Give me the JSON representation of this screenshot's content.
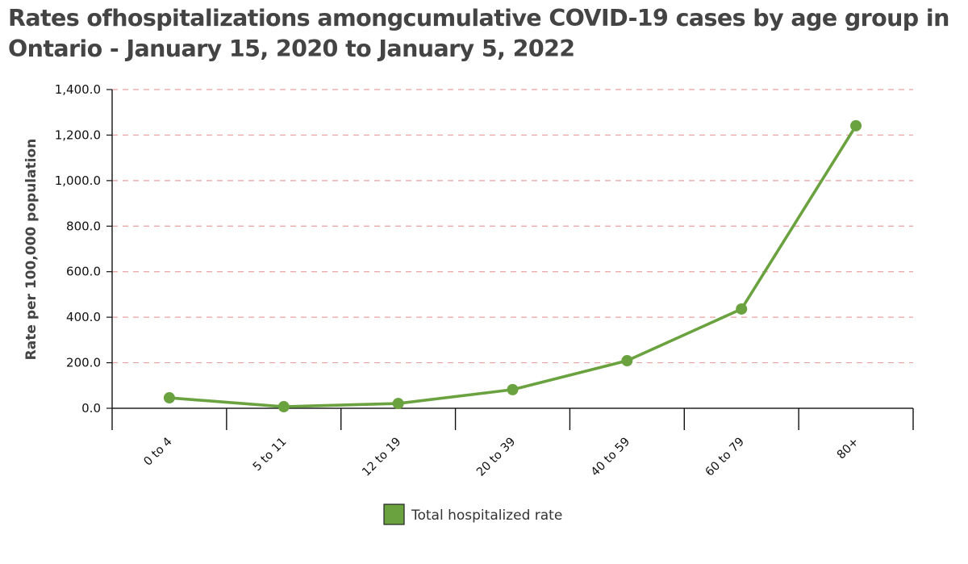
{
  "chart_data": {
    "type": "line",
    "title": "Rates ofhospitalizations amongcumulative COVID-19 cases by age group  in Ontario - January 15, 2020 to January 5, 2022",
    "xlabel": "",
    "ylabel": "Rate per 100,000 population",
    "categories": [
      "0 to 4",
      "5 to 11",
      "12 to 19",
      "20 to 39",
      "40 to 59",
      "60 to 79",
      "80+"
    ],
    "series": [
      {
        "name": "Total hospitalized rate",
        "color": "#6aa23f",
        "values": [
          46,
          7,
          21,
          82,
          209,
          436,
          1241
        ]
      }
    ],
    "ylim": [
      0,
      1400
    ],
    "yticks": [
      0,
      200,
      400,
      600,
      800,
      1000,
      1200,
      1400
    ],
    "ytick_labels": [
      "0.0",
      "200.0",
      "400.0",
      "600.0",
      "800.0",
      "1,000.0",
      "1,200.0",
      "1,400.0"
    ],
    "grid": true,
    "grid_color": "#e8a0a0",
    "legend_position": "bottom-center"
  }
}
